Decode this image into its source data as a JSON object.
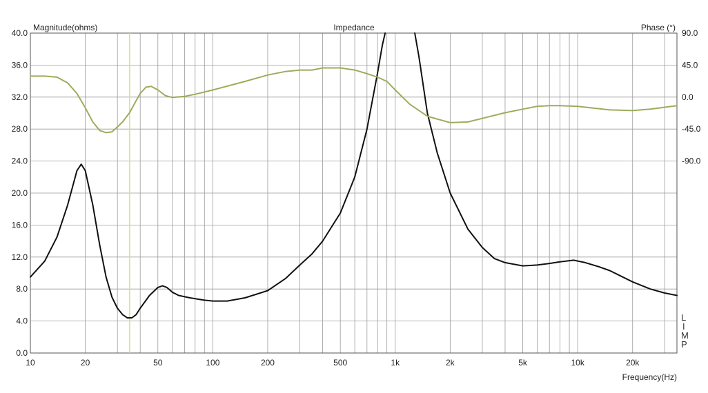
{
  "chart_data": {
    "type": "line",
    "title": "Impedance",
    "ylabel": "Magnitude(ohms)",
    "y2label": "Phase (°)",
    "xlabel": "Frequency(Hz)",
    "x_scale": "log",
    "xlim": [
      10,
      35000
    ],
    "ylim": [
      0,
      40
    ],
    "y2lim": [
      -90,
      90
    ],
    "x_ticks": [
      {
        "v": 10,
        "label": "10"
      },
      {
        "v": 20,
        "label": "20"
      },
      {
        "v": 50,
        "label": "50"
      },
      {
        "v": 100,
        "label": "100"
      },
      {
        "v": 200,
        "label": "200"
      },
      {
        "v": 500,
        "label": "500"
      },
      {
        "v": 1000,
        "label": "1k"
      },
      {
        "v": 2000,
        "label": "2k"
      },
      {
        "v": 5000,
        "label": "5k"
      },
      {
        "v": 10000,
        "label": "10k"
      },
      {
        "v": 20000,
        "label": "20k"
      }
    ],
    "y_ticks": [
      "0.0",
      "4.0",
      "8.0",
      "12.0",
      "16.0",
      "20.0",
      "24.0",
      "28.0",
      "32.0",
      "36.0",
      "40.0"
    ],
    "y2_ticks": [
      "-90.0",
      "-45.0",
      "0.0",
      "45.0",
      "90.0"
    ],
    "side_label": [
      "L",
      "I",
      "M",
      "P"
    ],
    "marker_x": 35,
    "grid": true,
    "colors": {
      "magnitude": "#111111",
      "phase": "#9aad5c",
      "marker": "#d8e070",
      "grid": "#9a9a9a"
    },
    "series": [
      {
        "key": "magnitude",
        "axis": "y",
        "points": [
          [
            10,
            9.5
          ],
          [
            12,
            11.5
          ],
          [
            14,
            14.5
          ],
          [
            16,
            18.5
          ],
          [
            18,
            22.8
          ],
          [
            19,
            23.6
          ],
          [
            20,
            22.8
          ],
          [
            22,
            18.5
          ],
          [
            24,
            13.5
          ],
          [
            26,
            9.5
          ],
          [
            28,
            7.0
          ],
          [
            30,
            5.6
          ],
          [
            32,
            4.8
          ],
          [
            34,
            4.4
          ],
          [
            36,
            4.4
          ],
          [
            38,
            4.8
          ],
          [
            40,
            5.6
          ],
          [
            45,
            7.2
          ],
          [
            50,
            8.2
          ],
          [
            53,
            8.4
          ],
          [
            56,
            8.2
          ],
          [
            60,
            7.6
          ],
          [
            65,
            7.2
          ],
          [
            75,
            6.9
          ],
          [
            90,
            6.6
          ],
          [
            100,
            6.5
          ],
          [
            120,
            6.5
          ],
          [
            150,
            6.9
          ],
          [
            200,
            7.8
          ],
          [
            250,
            9.3
          ],
          [
            300,
            11.0
          ],
          [
            350,
            12.4
          ],
          [
            400,
            14.0
          ],
          [
            500,
            17.5
          ],
          [
            600,
            22.0
          ],
          [
            700,
            28.0
          ],
          [
            800,
            35.0
          ],
          [
            850,
            38.5
          ],
          [
            880,
            40.0
          ]
        ]
      },
      {
        "key": "magnitude",
        "axis": "y",
        "points": [
          [
            1280,
            40.0
          ],
          [
            1350,
            37.0
          ],
          [
            1500,
            30.0
          ],
          [
            1700,
            25.0
          ],
          [
            2000,
            20.0
          ],
          [
            2500,
            15.5
          ],
          [
            3000,
            13.2
          ],
          [
            3500,
            11.8
          ],
          [
            4000,
            11.3
          ],
          [
            5000,
            10.9
          ],
          [
            6000,
            11.0
          ],
          [
            7000,
            11.2
          ],
          [
            8000,
            11.4
          ],
          [
            9500,
            11.6
          ],
          [
            11000,
            11.3
          ],
          [
            13000,
            10.8
          ],
          [
            15000,
            10.3
          ],
          [
            20000,
            8.9
          ],
          [
            25000,
            8.0
          ],
          [
            30000,
            7.5
          ],
          [
            35000,
            7.2
          ]
        ]
      },
      {
        "key": "phase",
        "axis": "y2",
        "points": [
          [
            10,
            29.5
          ],
          [
            12,
            29.5
          ],
          [
            14,
            28.0
          ],
          [
            16,
            20.0
          ],
          [
            18,
            5.0
          ],
          [
            20,
            -15.0
          ],
          [
            22,
            -35.0
          ],
          [
            24,
            -47.0
          ],
          [
            26,
            -50.0
          ],
          [
            28,
            -49.0
          ],
          [
            30,
            -42.0
          ],
          [
            32,
            -35.0
          ],
          [
            35,
            -22.0
          ],
          [
            38,
            -5.0
          ],
          [
            40,
            5.0
          ],
          [
            43,
            14.0
          ],
          [
            46,
            15.0
          ],
          [
            50,
            10.0
          ],
          [
            55,
            2.0
          ],
          [
            60,
            -0.5
          ],
          [
            70,
            1.0
          ],
          [
            80,
            4.0
          ],
          [
            100,
            10.0
          ],
          [
            150,
            22.0
          ],
          [
            200,
            31.0
          ],
          [
            250,
            36.0
          ],
          [
            300,
            38.0
          ],
          [
            350,
            38.0
          ],
          [
            400,
            41.0
          ],
          [
            500,
            41.0
          ],
          [
            600,
            38.0
          ],
          [
            700,
            33.0
          ],
          [
            800,
            28.0
          ],
          [
            900,
            22.0
          ],
          [
            1000,
            10.0
          ],
          [
            1200,
            -10.0
          ],
          [
            1500,
            -27.0
          ],
          [
            2000,
            -36.0
          ],
          [
            2500,
            -35.0
          ],
          [
            3000,
            -30.0
          ],
          [
            4000,
            -22.0
          ],
          [
            5000,
            -17.0
          ],
          [
            6000,
            -13.0
          ],
          [
            7000,
            -12.0
          ],
          [
            8000,
            -12.0
          ],
          [
            10000,
            -13.0
          ],
          [
            15000,
            -18.0
          ],
          [
            20000,
            -19.0
          ],
          [
            25000,
            -17.0
          ],
          [
            35000,
            -12.0
          ]
        ]
      }
    ]
  }
}
